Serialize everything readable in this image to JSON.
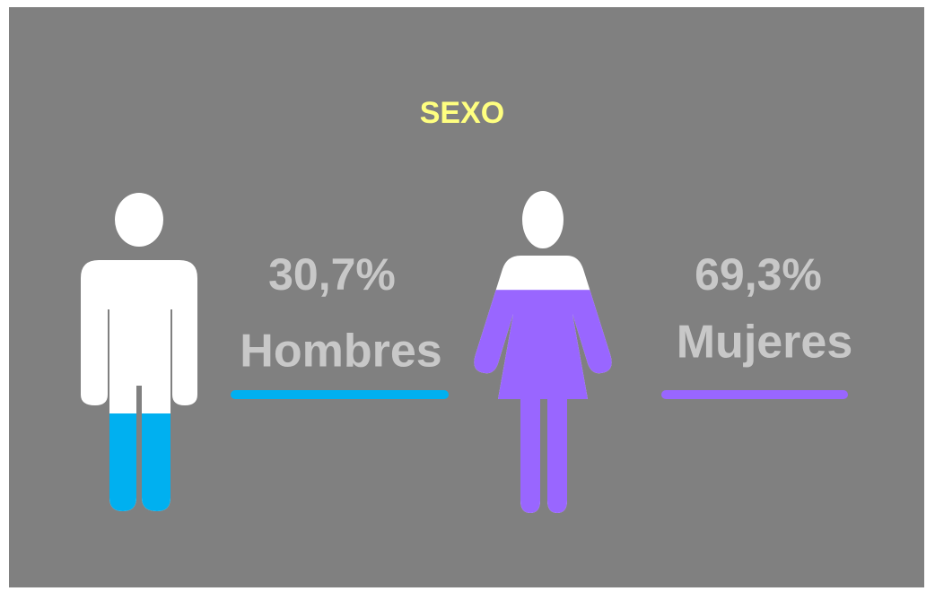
{
  "chart_data": {
    "type": "pictogram",
    "title": "SEXO",
    "categories": [
      "Hombres",
      "Mujeres"
    ],
    "series": [
      {
        "name": null,
        "values": [
          30.7,
          69.3
        ],
        "value_labels": [
          "30,7%",
          "69,3%"
        ]
      }
    ],
    "colors": [
      "#00b0f0",
      "#9966ff"
    ]
  }
}
